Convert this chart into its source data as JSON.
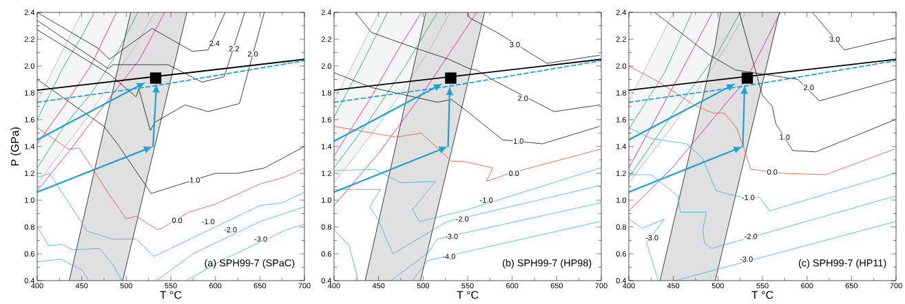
{
  "chart_data": [
    {
      "type": "line",
      "xlabel": "T °C",
      "ylabel": "P (GPa)",
      "xlim": [
        400,
        700
      ],
      "ylim": [
        0.4,
        2.4
      ],
      "xticks": [
        400,
        450,
        500,
        550,
        600,
        650,
        700
      ],
      "yticks": [
        {
          "value": 0.4,
          "label": "0.4"
        },
        {
          "value": 0.6,
          "label": "0.6"
        },
        {
          "value": 0.8,
          "label": "0.8"
        },
        {
          "value": 1.0,
          "label": "1.0"
        },
        {
          "value": 1.2,
          "label": "1.2"
        },
        {
          "value": 1.4,
          "label": "1.4"
        },
        {
          "value": 1.6,
          "label": "1.6"
        },
        {
          "value": 1.8,
          "label": "1.8"
        },
        {
          "value": 2.0,
          "label": "2.0"
        },
        {
          "value": 2.2,
          "label": "2.2"
        },
        {
          "value": 2.4,
          "label": "2.4"
        }
      ],
      "annotations": [
        "(a) SPH99-7 (SPaC)",
        {
          "text": "2.4",
          "x": 599,
          "y": 2.17
        },
        {
          "text": "2.2",
          "x": 621,
          "y": 2.13
        },
        {
          "text": "2.0",
          "x": 642,
          "y": 2.09
        },
        {
          "text": "1.0",
          "x": 577,
          "y": 1.15
        },
        {
          "text": "0.0",
          "x": 557,
          "y": 0.85
        },
        {
          "text": "-1.0",
          "x": 592,
          "y": 0.84
        },
        {
          "text": "-2.0",
          "x": 617,
          "y": 0.78
        },
        {
          "text": "-3.0",
          "x": 651,
          "y": 0.71
        }
      ],
      "series": [
        {
          "color": "#a7a9ac",
          "x": [
            400,
            420,
            435,
            450,
            470,
            490,
            510,
            532
          ],
          "values": [
            1.12,
            1.3,
            1.43,
            1.56,
            1.75,
            1.95,
            2.15,
            2.4
          ],
          "lower": [
            1.12,
            1.3,
            1.43,
            1.56,
            1.75,
            1.95,
            2.15,
            2.4
          ],
          "upper": [
            1.74,
            2.0,
            2.2,
            2.4,
            2.4,
            2.4,
            2.4,
            2.4
          ]
        },
        {
          "color": "#000000",
          "x": [
            436,
            496,
            505,
            568
          ],
          "values": [
            0.4,
            2.14,
            2.4,
            null
          ],
          "lower": [
            0.4,
            0.4,
            0.65,
            2.4
          ],
          "upper": [
            0.4,
            2.14,
            2.4,
            2.4
          ]
        },
        {
          "color": "#a7a9ac",
          "x": [
            400,
            420,
            435,
            450
          ],
          "values": [
            1.74,
            2.0,
            2.2,
            2.4
          ]
        },
        {
          "color": "#000000",
          "x": [
            496,
            568
          ],
          "values": [
            0.4,
            2.4
          ]
        },
        {
          "color": "#00a651",
          "x": [
            400,
            430,
            450,
            464
          ],
          "values": [
            1.6,
            2.0,
            2.22,
            2.4
          ]
        },
        {
          "color": "#00a651",
          "x": [
            400,
            430,
            461,
            490,
            513
          ],
          "values": [
            1.24,
            1.55,
            1.8,
            2.1,
            2.4
          ]
        },
        {
          "color": "#ec008c",
          "x": [
            400,
            430,
            460,
            489
          ],
          "values": [
            1.42,
            1.7,
            2.0,
            2.4
          ]
        },
        {
          "color": "#ec008c",
          "x": [
            400,
            440,
            480,
            515,
            543
          ],
          "values": [
            1.07,
            1.4,
            1.75,
            2.05,
            2.4
          ]
        },
        {
          "color": "#000000",
          "x": [
            400,
            469,
            481,
            529,
            574,
            592,
            611
          ],
          "values": [
            2.4,
            2.13,
            2.05,
            2.28,
            2.11,
            2.12,
            2.4
          ]
        },
        {
          "color": "#000000",
          "x": [
            400,
            480,
            485,
            547,
            585,
            610,
            633
          ],
          "values": [
            2.34,
            1.98,
            2.01,
            2.01,
            1.88,
            1.92,
            2.4
          ]
        },
        {
          "color": "#000000",
          "x": [
            400,
            481,
            511,
            514,
            527,
            532,
            566,
            592,
            627,
            655
          ],
          "values": [
            2.27,
            1.94,
            1.77,
            1.83,
            1.52,
            1.58,
            1.71,
            1.66,
            1.72,
            2.4
          ]
        },
        {
          "color": "#000000",
          "x": [
            400,
            475,
            490,
            528,
            600,
            625,
            655,
            700
          ],
          "values": [
            1.9,
            1.55,
            1.42,
            1.05,
            1.2,
            1.2,
            1.24,
            1.4
          ]
        },
        {
          "color": "#ef4023",
          "x": [
            400,
            435,
            447,
            480,
            500,
            511,
            535,
            540,
            570,
            600,
            650,
            677,
            700
          ],
          "values": [
            1.54,
            1.38,
            1.39,
            1.05,
            0.86,
            0.88,
            0.78,
            0.79,
            0.91,
            0.97,
            1.12,
            1.17,
            1.24
          ]
        },
        {
          "color": "#27aae1",
          "x": [
            400,
            414,
            456,
            484,
            511,
            531,
            650,
            675,
            700
          ],
          "values": [
            1.17,
            1.2,
            0.77,
            0.71,
            0.71,
            0.58,
            0.96,
            0.98,
            1.06
          ]
        },
        {
          "color": "#27aae1",
          "x": [
            400,
            413,
            428,
            440,
            470,
            485,
            495
          ],
          "values": [
            0.8,
            0.66,
            0.67,
            0.63,
            0.64,
            0.52,
            0.4
          ]
        },
        {
          "color": "#27aae1",
          "x": [
            400,
            427,
            450,
            458
          ],
          "values": [
            0.54,
            0.56,
            0.48,
            0.4
          ]
        },
        {
          "color": "#27aae1",
          "x": [
            534,
            575,
            650,
            700
          ],
          "values": [
            0.4,
            0.6,
            0.84,
            0.95
          ]
        },
        {
          "color": "#27aae1",
          "x": [
            567,
            610,
            680,
            700
          ],
          "values": [
            0.4,
            0.56,
            0.78,
            0.82
          ]
        },
        {
          "color": "#000000",
          "line_style": "solid",
          "x": [
            400,
            700
          ],
          "values": [
            1.82,
            2.05
          ]
        },
        {
          "color": "#1ba1d6",
          "line_style": "dashed",
          "x": [
            400,
            530,
            700
          ],
          "values": [
            1.73,
            1.85,
            2.04
          ]
        },
        {
          "type": "scatter",
          "marker": "square",
          "color": "#000000",
          "x": [
            533
          ],
          "values": [
            1.91
          ]
        }
      ]
    },
    {
      "type": "line",
      "xlabel": "T °C",
      "xlim": [
        400,
        700
      ],
      "ylim": [
        0.4,
        2.4
      ],
      "xticks": [
        400,
        450,
        500,
        550,
        600,
        650,
        700
      ],
      "yticks": [
        {
          "value": 0.4,
          "label": "0.4"
        },
        {
          "value": 0.6,
          "label": "0.6"
        },
        {
          "value": 0.8,
          "label": "0.8"
        },
        {
          "value": 1.0,
          "label": "1.0"
        },
        {
          "value": 1.2,
          "label": "1.2"
        },
        {
          "value": 1.4,
          "label": "1.4"
        },
        {
          "value": 1.6,
          "label": "1.6"
        },
        {
          "value": 1.8,
          "label": "1.8"
        },
        {
          "value": 2.0,
          "label": "2.0"
        },
        {
          "value": 2.2,
          "label": "2.2"
        },
        {
          "value": 2.4,
          "label": "2.4"
        }
      ],
      "annotations": [
        "(b) SPH99-7 (HP98)",
        {
          "text": "3.0",
          "x": 603,
          "y": 2.16
        },
        {
          "text": "2.0",
          "x": 612,
          "y": 1.76
        },
        {
          "text": "1.0",
          "x": 607,
          "y": 1.44
        },
        {
          "text": "0.0",
          "x": 602,
          "y": 1.2
        },
        {
          "text": "-1.0",
          "x": 571,
          "y": 1.0
        },
        {
          "text": "-2.0",
          "x": 544,
          "y": 0.86
        },
        {
          "text": "-3.0",
          "x": 532,
          "y": 0.73
        },
        {
          "text": "-4.0",
          "x": 529,
          "y": 0.58
        }
      ],
      "series": [
        {
          "color": "#a7a9ac",
          "x": [
            400,
            420,
            435,
            450,
            470,
            490,
            510,
            530
          ],
          "values": [
            1.13,
            1.3,
            1.43,
            1.56,
            1.75,
            1.95,
            2.15,
            2.4
          ],
          "lower": [
            1.13,
            1.3,
            1.43,
            1.56,
            1.75,
            1.95,
            2.15,
            2.4
          ],
          "upper": [
            1.74,
            2.0,
            2.2,
            2.4,
            2.4,
            2.4,
            2.4,
            2.4
          ]
        },
        {
          "color": "#000000",
          "x": [
            435,
            497,
            503,
            569
          ],
          "values": [
            0.4,
            2.22,
            2.4,
            null
          ],
          "lower": [
            0.4,
            0.4,
            0.57,
            2.4
          ],
          "upper": [
            0.4,
            2.22,
            2.4,
            2.4
          ]
        },
        {
          "color": "#a7a9ac",
          "x": [
            400,
            420,
            435,
            450
          ],
          "values": [
            1.74,
            2.0,
            2.2,
            2.4
          ]
        },
        {
          "color": "#000000",
          "x": [
            497,
            569
          ],
          "values": [
            0.4,
            2.4
          ]
        },
        {
          "color": "#00a651",
          "x": [
            400,
            430,
            445,
            460
          ],
          "values": [
            1.62,
            2.0,
            2.2,
            2.4
          ]
        },
        {
          "color": "#00a651",
          "x": [
            400,
            440,
            480,
            516
          ],
          "values": [
            1.24,
            1.6,
            2.0,
            2.4
          ]
        },
        {
          "color": "#ec008c",
          "x": [
            400,
            440,
            470,
            498
          ],
          "values": [
            1.33,
            1.75,
            2.1,
            2.4
          ]
        },
        {
          "color": "#ec008c",
          "x": [
            400,
            450,
            500,
            530,
            560
          ],
          "values": [
            0.96,
            1.35,
            1.8,
            2.1,
            2.4
          ]
        },
        {
          "color": "#000000",
          "x": [
            550,
            552,
            583,
            639,
            698
          ],
          "values": [
            2.4,
            2.36,
            2.25,
            2.02,
            2.08
          ]
        },
        {
          "color": "#000000",
          "x": [
            424,
            442,
            493,
            529,
            552,
            560,
            580,
            647,
            698
          ],
          "values": [
            2.4,
            2.25,
            2.13,
            2.05,
            1.98,
            1.97,
            1.89,
            1.66,
            1.71
          ]
        },
        {
          "color": "#000000",
          "x": [
            400,
            442,
            516,
            532,
            550,
            589,
            634,
            698
          ],
          "values": [
            1.95,
            1.84,
            1.73,
            1.75,
            1.66,
            1.45,
            1.42,
            1.55
          ]
        },
        {
          "color": "#ef4023",
          "x": [
            400,
            470,
            498,
            532,
            545,
            578,
            571,
            593,
            614,
            699
          ],
          "values": [
            1.55,
            1.47,
            1.5,
            1.29,
            1.29,
            1.24,
            1.14,
            1.19,
            1.23,
            1.38
          ]
        },
        {
          "color": "#27aae1",
          "x": [
            400,
            445,
            475,
            514,
            488,
            496,
            550,
            699
          ],
          "values": [
            1.22,
            1.23,
            1.13,
            1.14,
            0.93,
            0.84,
            0.93,
            1.24
          ]
        },
        {
          "color": "#27aae1",
          "x": [
            400,
            452,
            440,
            450,
            466,
            527,
            699
          ],
          "values": [
            1.08,
            1.08,
            0.95,
            0.85,
            0.6,
            0.84,
            1.11
          ]
        },
        {
          "color": "#27aae1",
          "x": [
            464,
            506,
            516,
            699
          ],
          "values": [
            0.4,
            0.61,
            0.71,
            0.98
          ]
        },
        {
          "color": "#27aae1",
          "x": [
            488,
            505,
            698
          ],
          "values": [
            0.4,
            0.55,
            0.84
          ]
        },
        {
          "color": "#27aae1",
          "x": [
            400,
            417,
            427
          ],
          "values": [
            0.78,
            0.66,
            0.4
          ]
        },
        {
          "color": "#000000",
          "line_style": "solid",
          "x": [
            400,
            700
          ],
          "values": [
            1.82,
            2.05
          ]
        },
        {
          "color": "#1ba1d6",
          "line_style": "dashed",
          "x": [
            400,
            530,
            700
          ],
          "values": [
            1.73,
            1.85,
            2.04
          ]
        },
        {
          "type": "scatter",
          "marker": "square",
          "color": "#000000",
          "x": [
            531
          ],
          "values": [
            1.91
          ]
        }
      ]
    },
    {
      "type": "line",
      "xlabel": "T °C",
      "xlim": [
        400,
        700
      ],
      "ylim": [
        0.4,
        2.4
      ],
      "xticks": [
        400,
        450,
        500,
        550,
        600,
        650,
        700
      ],
      "yticks": [
        {
          "value": 0.4,
          "label": "0.4"
        },
        {
          "value": 0.6,
          "label": "0.6"
        },
        {
          "value": 0.8,
          "label": "0.8"
        },
        {
          "value": 1.0,
          "label": "1.0"
        },
        {
          "value": 1.2,
          "label": "1.2"
        },
        {
          "value": 1.4,
          "label": "1.4"
        },
        {
          "value": 1.6,
          "label": "1.6"
        },
        {
          "value": 1.8,
          "label": "1.8"
        },
        {
          "value": 2.0,
          "label": "2.0"
        },
        {
          "value": 2.2,
          "label": "2.2"
        },
        {
          "value": 2.4,
          "label": "2.4"
        }
      ],
      "annotations": [
        "(c) SPH99-7 (HP11)",
        {
          "text": "3.0",
          "x": 631,
          "y": 2.2
        },
        {
          "text": "2.0",
          "x": 602,
          "y": 1.84
        },
        {
          "text": "1.0",
          "x": 575,
          "y": 1.47
        },
        {
          "text": "0.0",
          "x": 561,
          "y": 1.21
        },
        {
          "text": "-1.0",
          "x": 534,
          "y": 1.02
        },
        {
          "text": "-2.0",
          "x": 537,
          "y": 0.73
        },
        {
          "text": "-3.0",
          "x": 532,
          "y": 0.56
        },
        {
          "text": "-3.0",
          "x": 426,
          "y": 0.72
        }
      ],
      "series": [
        {
          "color": "#a7a9ac",
          "x": [
            400,
            420,
            435,
            450,
            470,
            490,
            510,
            531
          ],
          "values": [
            1.13,
            1.3,
            1.43,
            1.56,
            1.75,
            1.95,
            2.15,
            2.4
          ],
          "lower": [
            1.13,
            1.3,
            1.43,
            1.56,
            1.75,
            1.95,
            2.15,
            2.4
          ],
          "upper": [
            1.74,
            2.0,
            2.2,
            2.4,
            2.4,
            2.4,
            2.4,
            2.4
          ]
        },
        {
          "color": "#000000",
          "x": [
            435,
            497,
            503,
            569
          ],
          "values": [
            0.4,
            2.16,
            2.4,
            null
          ],
          "lower": [
            0.4,
            0.4,
            0.57,
            2.4
          ],
          "upper": [
            0.4,
            2.16,
            2.4,
            2.4
          ]
        },
        {
          "color": "#a7a9ac",
          "x": [
            400,
            420,
            435,
            450
          ],
          "values": [
            1.74,
            2.0,
            2.2,
            2.4
          ]
        },
        {
          "color": "#000000",
          "x": [
            497,
            569
          ],
          "values": [
            0.4,
            2.4
          ]
        },
        {
          "color": "#00a651",
          "x": [
            400,
            440,
            471
          ],
          "values": [
            1.53,
            1.95,
            2.4
          ]
        },
        {
          "color": "#00a651",
          "x": [
            400,
            450,
            500,
            525
          ],
          "values": [
            1.17,
            1.65,
            2.1,
            2.4
          ]
        },
        {
          "color": "#ec008c",
          "x": [
            400,
            450,
            494
          ],
          "values": [
            1.24,
            1.85,
            2.4
          ]
        },
        {
          "color": "#ec008c",
          "x": [
            400,
            450,
            500,
            532,
            570
          ],
          "values": [
            0.92,
            1.25,
            1.65,
            1.9,
            2.4
          ]
        },
        {
          "color": "#000000",
          "x": [
            606,
            642,
            699
          ],
          "values": [
            2.4,
            2.12,
            2.21
          ]
        },
        {
          "color": "#000000",
          "x": [
            429,
            491,
            520,
            590,
            614,
            699
          ],
          "values": [
            2.4,
            2.08,
            1.97,
            1.9,
            1.74,
            1.9
          ]
        },
        {
          "color": "#000000",
          "x": [
            524,
            550,
            561,
            565,
            584,
            610,
            699
          ],
          "values": [
            2.4,
            1.78,
            1.7,
            1.57,
            1.37,
            1.36,
            1.6
          ]
        },
        {
          "color": "#ef4023",
          "x": [
            400,
            434,
            473,
            494,
            507,
            521,
            530,
            537,
            549,
            573,
            621,
            698
          ],
          "values": [
            2.0,
            1.88,
            1.71,
            1.65,
            1.65,
            1.54,
            1.37,
            1.23,
            1.22,
            1.2,
            1.19,
            1.38
          ]
        },
        {
          "color": "#27aae1",
          "x": [
            400,
            425,
            465,
            483,
            498,
            521,
            547,
            558,
            699
          ],
          "values": [
            1.54,
            1.46,
            1.42,
            1.31,
            1.07,
            1.03,
            1.02,
            0.92,
            1.2
          ]
        },
        {
          "color": "#27aae1",
          "x": [
            400,
            425,
            455,
            458,
            487,
            483,
            485,
            493,
            699
          ],
          "values": [
            1.19,
            1.19,
            1.03,
            0.91,
            0.91,
            0.78,
            0.68,
            0.64,
            1.03
          ]
        },
        {
          "color": "#27aae1",
          "x": [
            452,
            699
          ],
          "values": [
            0.4,
            0.84
          ]
        },
        {
          "color": "#27aae1",
          "x": [
            400,
            415,
            440,
            420,
            433
          ],
          "values": [
            0.86,
            0.79,
            0.86,
            0.68,
            0.4
          ]
        },
        {
          "color": "#000000",
          "line_style": "solid",
          "x": [
            400,
            700
          ],
          "values": [
            1.82,
            2.05
          ]
        },
        {
          "color": "#1ba1d6",
          "line_style": "dashed",
          "x": [
            400,
            530,
            700
          ],
          "values": [
            1.73,
            1.85,
            2.04
          ]
        },
        {
          "type": "scatter",
          "marker": "square",
          "color": "#000000",
          "x": [
            533
          ],
          "values": [
            1.91
          ]
        }
      ]
    }
  ]
}
